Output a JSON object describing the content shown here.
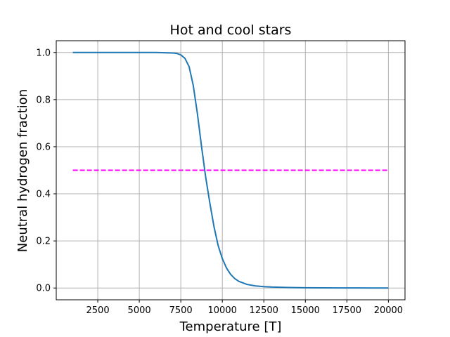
{
  "chart_data": {
    "type": "line",
    "title": "Hot and cool stars",
    "xlabel": "Temperature [T]",
    "ylabel": "Neutral hydrogen fraction",
    "xlim": [
      0,
      21000
    ],
    "ylim": [
      -0.05,
      1.05
    ],
    "grid": true,
    "x_ticks": [
      2500,
      5000,
      7500,
      10000,
      12500,
      15000,
      17500,
      20000
    ],
    "y_ticks": [
      "0.0",
      "0.2",
      "0.4",
      "0.6",
      "0.8",
      "1.0"
    ],
    "series": [
      {
        "color": "#1f77b4",
        "line_style": "solid",
        "x": [
          1000,
          2000,
          3000,
          4000,
          5000,
          6000,
          6500,
          7000,
          7250,
          7500,
          7750,
          8000,
          8250,
          8500,
          8750,
          9000,
          9250,
          9500,
          9750,
          10000,
          10250,
          10500,
          10750,
          11000,
          11500,
          12000,
          12500,
          13000,
          14000,
          15000,
          16000,
          17000,
          18000,
          19000,
          20000
        ],
        "y": [
          1.0,
          1.0,
          1.0,
          1.0,
          1.0,
          1.0,
          0.999,
          0.998,
          0.996,
          0.99,
          0.975,
          0.94,
          0.86,
          0.74,
          0.6,
          0.47,
          0.36,
          0.26,
          0.18,
          0.125,
          0.085,
          0.058,
          0.04,
          0.028,
          0.015,
          0.009,
          0.006,
          0.004,
          0.002,
          0.001,
          0.0005,
          0.0003,
          0.0002,
          0.0001,
          0.0
        ]
      },
      {
        "color": "#ff00ff",
        "line_style": "dashed",
        "x": [
          1000,
          20000
        ],
        "y": [
          0.5,
          0.5
        ]
      }
    ]
  }
}
